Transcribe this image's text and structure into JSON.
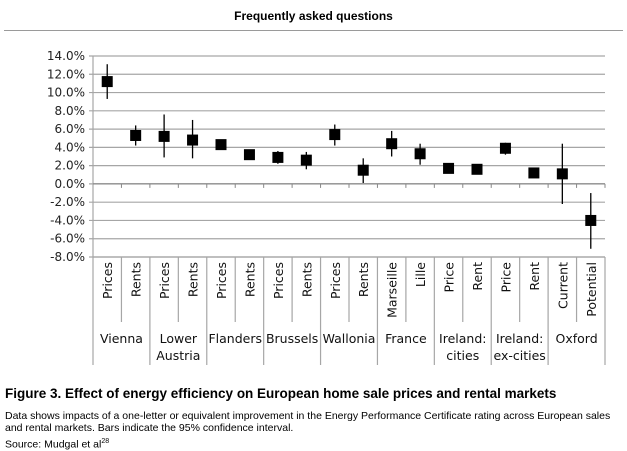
{
  "header": {
    "title": "Frequently asked questions"
  },
  "chart_data": {
    "type": "scatter",
    "error_bars": "95% confidence interval",
    "ylim": [
      -8,
      14
    ],
    "yticks": [
      14,
      12,
      10,
      8,
      6,
      4,
      2,
      0,
      -2,
      -4,
      -6,
      -8
    ],
    "ytick_labels": [
      "14.0%",
      "12.0%",
      "10.0%",
      "8.0%",
      "6.0%",
      "4.0%",
      "2.0%",
      "0.0%",
      "-2.0%",
      "-4.0%",
      "-6.0%",
      "-8.0%"
    ],
    "grid": true,
    "groups": [
      {
        "label": "Vienna",
        "items": [
          {
            "label": "Prices",
            "value": 11.2,
            "low": 9.3,
            "high": 13.1
          },
          {
            "label": "Rents",
            "value": 5.3,
            "low": 4.2,
            "high": 6.4
          }
        ]
      },
      {
        "label": "Lower Austria",
        "items": [
          {
            "label": "Prices",
            "value": 5.2,
            "low": 2.9,
            "high": 7.6
          },
          {
            "label": "Rents",
            "value": 4.8,
            "low": 2.8,
            "high": 7.0
          }
        ]
      },
      {
        "label": "Flanders",
        "items": [
          {
            "label": "Prices",
            "value": 4.3,
            "low": 4.1,
            "high": 4.5
          },
          {
            "label": "Rents",
            "value": 3.2,
            "low": 3.0,
            "high": 3.4
          }
        ]
      },
      {
        "label": "Brussels",
        "items": [
          {
            "label": "Prices",
            "value": 2.9,
            "low": 2.2,
            "high": 3.6
          },
          {
            "label": "Rents",
            "value": 2.6,
            "low": 1.6,
            "high": 3.5
          }
        ]
      },
      {
        "label": "Wallonia",
        "items": [
          {
            "label": "Prices",
            "value": 5.4,
            "low": 4.2,
            "high": 6.5
          },
          {
            "label": "Rents",
            "value": 1.5,
            "low": 0.1,
            "high": 2.8
          }
        ]
      },
      {
        "label": "France",
        "items": [
          {
            "label": "Marseille",
            "value": 4.4,
            "low": 3.0,
            "high": 5.8
          },
          {
            "label": "Lille",
            "value": 3.3,
            "low": 2.1,
            "high": 4.4
          }
        ]
      },
      {
        "label": "Ireland: cities",
        "items": [
          {
            "label": "Price",
            "value": 1.7,
            "low": 1.6,
            "high": 1.8
          },
          {
            "label": "Rent",
            "value": 1.6,
            "low": 1.5,
            "high": 1.7
          }
        ]
      },
      {
        "label": "Ireland: ex-cities",
        "items": [
          {
            "label": "Price",
            "value": 3.9,
            "low": 3.2,
            "high": 4.5
          },
          {
            "label": "Rent",
            "value": 1.2,
            "low": 1.1,
            "high": 1.3
          }
        ]
      },
      {
        "label": "Oxford",
        "items": [
          {
            "label": "Current",
            "value": 1.1,
            "low": -2.2,
            "high": 4.4
          },
          {
            "label": "Potential",
            "value": -4.0,
            "low": -7.1,
            "high": -1.0
          }
        ]
      }
    ],
    "marker_color": "#000000",
    "grid_color": "#a6a6a6"
  },
  "caption": {
    "title": "Figure 3. Effect of energy efficiency on European home sale prices and rental markets",
    "description": "Data shows impacts of a one-letter or equivalent improvement in the Energy Performance Certificate rating across European sales and rental markets. Bars indicate the 95% confidence interval.",
    "source": "Source: Mudgal  et al",
    "source_ref": "28"
  }
}
